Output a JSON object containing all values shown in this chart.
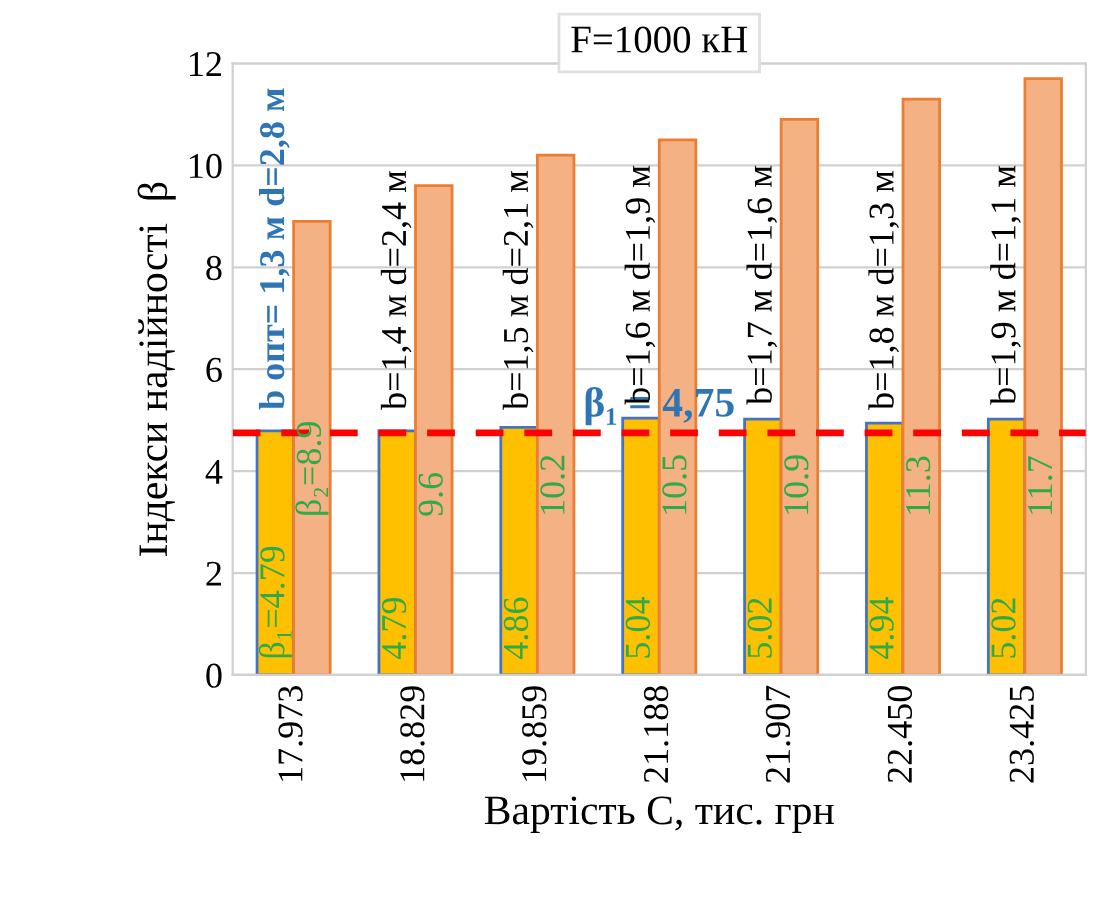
{
  "chart_data": {
    "type": "bar",
    "title": "F=1000 кН",
    "xlabel": "Вартість C, тис. грн",
    "ylabel": "Індекси надійності  β",
    "categories": [
      "17.973",
      "18.829",
      "19.859",
      "21.188",
      "21.907",
      "22.450",
      "23.425"
    ],
    "series": [
      {
        "color": "#ffc000",
        "values": [
          4.79,
          4.79,
          4.86,
          5.04,
          5.02,
          4.94,
          5.02
        ],
        "value_labels": [
          "β₁=4.79",
          "4.79",
          "4.86",
          "5.04",
          "5.02",
          "4.94",
          "5.02"
        ]
      },
      {
        "color": "#f4b183",
        "values": [
          8.9,
          9.6,
          10.2,
          10.5,
          10.9,
          11.3,
          11.7
        ],
        "value_labels": [
          "β₂=8.9",
          "9.6",
          "10.2",
          "10.5",
          "10.9",
          "11.3",
          "11.7"
        ]
      }
    ],
    "ylim": [
      0,
      12
    ],
    "yticks": [
      0,
      2,
      4,
      6,
      8,
      10,
      12
    ],
    "grid": "y",
    "ref_lines": [
      {
        "axis": "y",
        "value": 4.75,
        "label": "β₁ = 4,75",
        "color": "#ff0000",
        "line_style": "dashed"
      }
    ],
    "annotations": [
      {
        "text": "b опт= 1,3 м d=2,8 м",
        "x": "17.973",
        "y": 5.2
      },
      {
        "text": "b=1,4 м d=2,4 м",
        "x": "18.829",
        "y": 5.2
      },
      {
        "text": "b=1,5 м d=2,1 м",
        "x": "19.859",
        "y": 5.2
      },
      {
        "text": "b=1,6 м d=1,9 м",
        "x": "21.188",
        "y": 5.3
      },
      {
        "text": "b=1,7 м d=1,6 м",
        "x": "21.907",
        "y": 5.3
      },
      {
        "text": "b=1,8 м d=1,3 м",
        "x": "22.450",
        "y": 5.2
      },
      {
        "text": "b=1,9 м d=1,1 м",
        "x": "23.425",
        "y": 5.3
      }
    ]
  }
}
